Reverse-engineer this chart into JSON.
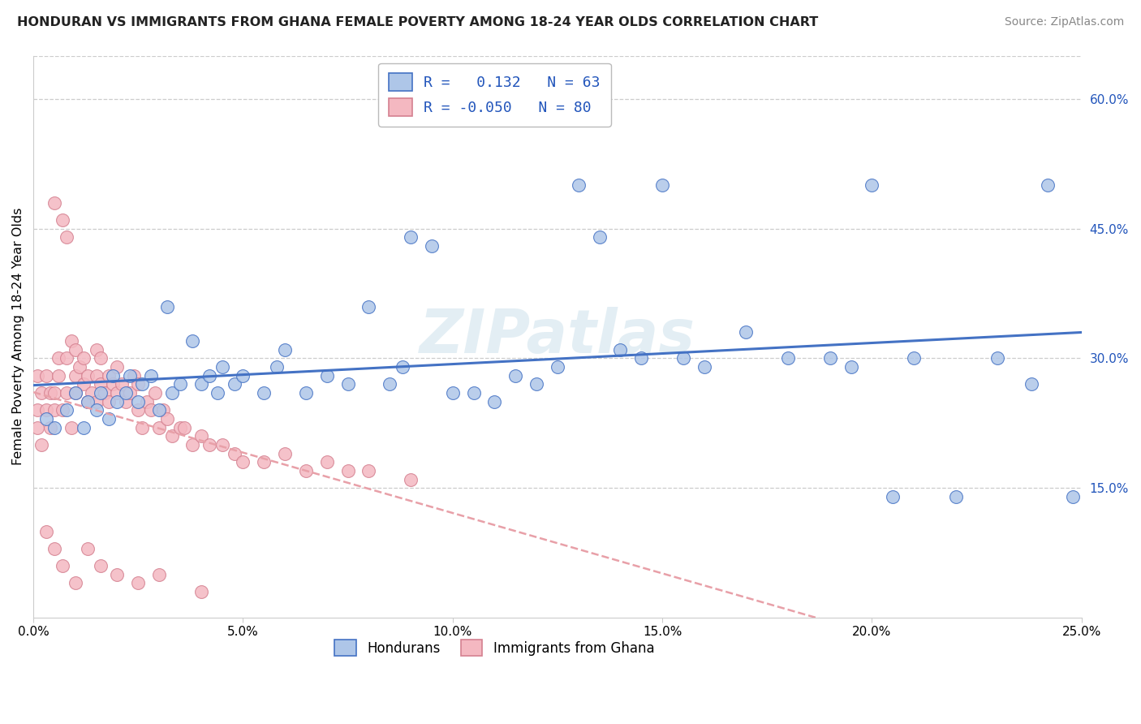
{
  "title": "HONDURAN VS IMMIGRANTS FROM GHANA FEMALE POVERTY AMONG 18-24 YEAR OLDS CORRELATION CHART",
  "source": "Source: ZipAtlas.com",
  "ylabel": "Female Poverty Among 18-24 Year Olds",
  "xlim": [
    0.0,
    0.25
  ],
  "ylim": [
    0.0,
    0.65
  ],
  "xticks": [
    0.0,
    0.05,
    0.1,
    0.15,
    0.2,
    0.25
  ],
  "xticklabels": [
    "0.0%",
    "5.0%",
    "10.0%",
    "15.0%",
    "20.0%",
    "25.0%"
  ],
  "yticks_right": [
    0.15,
    0.3,
    0.45,
    0.6
  ],
  "yticklabels_right": [
    "15.0%",
    "30.0%",
    "45.0%",
    "60.0%"
  ],
  "R_honduran": 0.132,
  "N_honduran": 63,
  "R_ghana": -0.05,
  "N_ghana": 80,
  "blue_face": "#aec6e8",
  "blue_edge": "#4472c4",
  "pink_face": "#f4b8c1",
  "pink_edge": "#d48090",
  "blue_line": "#4472c4",
  "pink_line": "#e8a0a8",
  "label_honduran": "Hondurans",
  "label_ghana": "Immigrants from Ghana",
  "watermark": "ZIPatlas",
  "grid_color": "#cccccc",
  "bg_color": "#ffffff",
  "accent_blue": "#2255bb",
  "honduran_x": [
    0.003,
    0.005,
    0.008,
    0.01,
    0.012,
    0.013,
    0.015,
    0.016,
    0.018,
    0.019,
    0.02,
    0.022,
    0.023,
    0.025,
    0.026,
    0.028,
    0.03,
    0.032,
    0.033,
    0.035,
    0.038,
    0.04,
    0.042,
    0.044,
    0.045,
    0.048,
    0.05,
    0.055,
    0.058,
    0.06,
    0.065,
    0.07,
    0.075,
    0.08,
    0.085,
    0.088,
    0.09,
    0.095,
    0.1,
    0.105,
    0.11,
    0.115,
    0.12,
    0.125,
    0.13,
    0.135,
    0.14,
    0.145,
    0.15,
    0.155,
    0.16,
    0.17,
    0.18,
    0.19,
    0.195,
    0.2,
    0.205,
    0.21,
    0.22,
    0.23,
    0.238,
    0.242,
    0.248
  ],
  "honduran_y": [
    0.23,
    0.22,
    0.24,
    0.26,
    0.22,
    0.25,
    0.24,
    0.26,
    0.23,
    0.28,
    0.25,
    0.26,
    0.28,
    0.25,
    0.27,
    0.28,
    0.24,
    0.36,
    0.26,
    0.27,
    0.32,
    0.27,
    0.28,
    0.26,
    0.29,
    0.27,
    0.28,
    0.26,
    0.29,
    0.31,
    0.26,
    0.28,
    0.27,
    0.36,
    0.27,
    0.29,
    0.44,
    0.43,
    0.26,
    0.26,
    0.25,
    0.28,
    0.27,
    0.29,
    0.5,
    0.44,
    0.31,
    0.3,
    0.5,
    0.3,
    0.29,
    0.33,
    0.3,
    0.3,
    0.29,
    0.5,
    0.14,
    0.3,
    0.14,
    0.3,
    0.27,
    0.5,
    0.14
  ],
  "ghana_x": [
    0.001,
    0.001,
    0.001,
    0.002,
    0.002,
    0.003,
    0.003,
    0.004,
    0.004,
    0.005,
    0.005,
    0.005,
    0.006,
    0.006,
    0.007,
    0.007,
    0.008,
    0.008,
    0.008,
    0.009,
    0.009,
    0.01,
    0.01,
    0.01,
    0.011,
    0.012,
    0.012,
    0.013,
    0.013,
    0.014,
    0.015,
    0.015,
    0.015,
    0.016,
    0.016,
    0.017,
    0.018,
    0.018,
    0.019,
    0.02,
    0.02,
    0.021,
    0.022,
    0.023,
    0.024,
    0.025,
    0.025,
    0.026,
    0.027,
    0.028,
    0.029,
    0.03,
    0.031,
    0.032,
    0.033,
    0.035,
    0.036,
    0.038,
    0.04,
    0.042,
    0.045,
    0.048,
    0.05,
    0.055,
    0.06,
    0.065,
    0.07,
    0.075,
    0.08,
    0.09,
    0.003,
    0.005,
    0.007,
    0.01,
    0.013,
    0.016,
    0.02,
    0.025,
    0.03,
    0.04
  ],
  "ghana_y": [
    0.24,
    0.28,
    0.22,
    0.26,
    0.2,
    0.24,
    0.28,
    0.26,
    0.22,
    0.26,
    0.24,
    0.48,
    0.28,
    0.3,
    0.24,
    0.46,
    0.44,
    0.3,
    0.26,
    0.32,
    0.22,
    0.26,
    0.28,
    0.31,
    0.29,
    0.27,
    0.3,
    0.25,
    0.28,
    0.26,
    0.25,
    0.28,
    0.31,
    0.27,
    0.3,
    0.26,
    0.25,
    0.28,
    0.27,
    0.26,
    0.29,
    0.27,
    0.25,
    0.26,
    0.28,
    0.24,
    0.27,
    0.22,
    0.25,
    0.24,
    0.26,
    0.22,
    0.24,
    0.23,
    0.21,
    0.22,
    0.22,
    0.2,
    0.21,
    0.2,
    0.2,
    0.19,
    0.18,
    0.18,
    0.19,
    0.17,
    0.18,
    0.17,
    0.17,
    0.16,
    0.1,
    0.08,
    0.06,
    0.04,
    0.08,
    0.06,
    0.05,
    0.04,
    0.05,
    0.03
  ]
}
